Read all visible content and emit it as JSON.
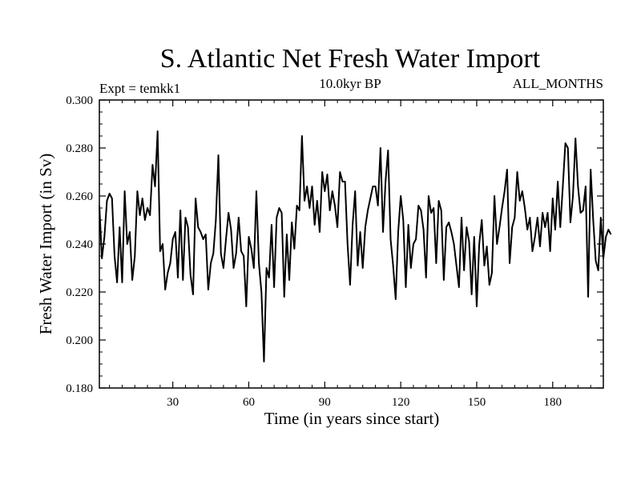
{
  "chart_data": {
    "type": "line",
    "title": "S. Atlantic Net Fresh Water Import",
    "subtitle_left": "Expt = temkk1",
    "subtitle_center": "10.0kyr BP",
    "subtitle_right": "ALL_MONTHS",
    "xlabel": "Time (in years since start)",
    "ylabel": "Fresh Water Import (in Sv)",
    "xlim": [
      1,
      200
    ],
    "ylim": [
      0.18,
      0.3
    ],
    "x_ticks": [
      30,
      60,
      90,
      120,
      150,
      180
    ],
    "x_tick_labels": [
      "30",
      "60",
      "90",
      "120",
      "150",
      "180"
    ],
    "y_ticks": [
      0.18,
      0.2,
      0.22,
      0.24,
      0.26,
      0.28,
      0.3
    ],
    "y_tick_labels": [
      "0.180",
      "0.200",
      "0.220",
      "0.240",
      "0.260",
      "0.280",
      "0.300"
    ],
    "grid": false,
    "line_color": "#000000",
    "series": [
      {
        "name": "Fresh Water Import",
        "x_start": 1,
        "x_step": 1,
        "values": [
          0.256,
          0.234,
          0.243,
          0.258,
          0.261,
          0.259,
          0.235,
          0.224,
          0.247,
          0.224,
          0.262,
          0.24,
          0.245,
          0.225,
          0.235,
          0.262,
          0.252,
          0.259,
          0.25,
          0.255,
          0.252,
          0.273,
          0.264,
          0.287,
          0.237,
          0.24,
          0.221,
          0.228,
          0.232,
          0.242,
          0.245,
          0.226,
          0.254,
          0.225,
          0.251,
          0.247,
          0.227,
          0.219,
          0.259,
          0.247,
          0.245,
          0.242,
          0.244,
          0.221,
          0.232,
          0.236,
          0.25,
          0.277,
          0.236,
          0.23,
          0.242,
          0.253,
          0.246,
          0.23,
          0.236,
          0.251,
          0.237,
          0.235,
          0.214,
          0.243,
          0.238,
          0.23,
          0.262,
          0.232,
          0.22,
          0.191,
          0.23,
          0.226,
          0.248,
          0.222,
          0.251,
          0.255,
          0.253,
          0.218,
          0.244,
          0.225,
          0.249,
          0.238,
          0.256,
          0.254,
          0.285,
          0.258,
          0.264,
          0.255,
          0.264,
          0.248,
          0.258,
          0.245,
          0.27,
          0.262,
          0.269,
          0.254,
          0.262,
          0.256,
          0.247,
          0.27,
          0.266,
          0.266,
          0.24,
          0.223,
          0.248,
          0.262,
          0.231,
          0.245,
          0.23,
          0.247,
          0.254,
          0.259,
          0.264,
          0.264,
          0.256,
          0.28,
          0.245,
          0.266,
          0.279,
          0.242,
          0.231,
          0.217,
          0.245,
          0.26,
          0.25,
          0.222,
          0.248,
          0.23,
          0.24,
          0.242,
          0.256,
          0.254,
          0.246,
          0.226,
          0.26,
          0.253,
          0.255,
          0.232,
          0.258,
          0.254,
          0.225,
          0.247,
          0.249,
          0.245,
          0.24,
          0.231,
          0.222,
          0.251,
          0.229,
          0.247,
          0.241,
          0.219,
          0.243,
          0.214,
          0.24,
          0.25,
          0.231,
          0.239,
          0.223,
          0.228,
          0.26,
          0.24,
          0.247,
          0.255,
          0.262,
          0.271,
          0.232,
          0.247,
          0.251,
          0.27,
          0.258,
          0.262,
          0.255,
          0.246,
          0.251,
          0.237,
          0.243,
          0.251,
          0.239,
          0.253,
          0.247,
          0.253,
          0.237,
          0.259,
          0.246,
          0.266,
          0.247,
          0.264,
          0.282,
          0.28,
          0.249,
          0.26,
          0.284,
          0.264,
          0.253,
          0.254,
          0.264,
          0.218,
          0.271,
          0.25,
          0.233,
          0.229,
          0.251,
          0.234,
          0.243,
          0.246,
          0.244
        ]
      }
    ]
  }
}
